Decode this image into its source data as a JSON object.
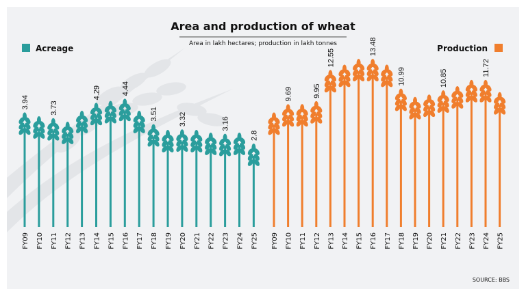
{
  "chart_data": {
    "type": "bar",
    "title": "Area and production of wheat",
    "subtitle": "Area in lakh hectares; production in lakh tonnes",
    "source": "SOURCE: BBS",
    "categories": [
      "FY09",
      "FY10",
      "FY11",
      "FY12",
      "FY13",
      "FY14",
      "FY15",
      "FY16",
      "FY17",
      "FY18",
      "FY19",
      "FY20",
      "FY21",
      "FY22",
      "FY23",
      "FY24",
      "FY25"
    ],
    "series": [
      {
        "name": "Acreage",
        "color": "#2a9d9c",
        "values": [
          3.94,
          3.8,
          3.73,
          3.6,
          4.0,
          4.29,
          4.36,
          4.44,
          4.0,
          3.51,
          3.3,
          3.32,
          3.3,
          3.2,
          3.16,
          3.2,
          2.8
        ],
        "labels": [
          "3.94",
          "",
          "3.73",
          "",
          "",
          "4.29",
          "",
          "4.44",
          "",
          "3.51",
          "",
          "3.32",
          "",
          "",
          "3.16",
          "",
          "2.8"
        ],
        "ylim": [
          0,
          7
        ]
      },
      {
        "name": "Production",
        "color": "#f07e2d",
        "values": [
          9.0,
          9.69,
          9.7,
          9.95,
          12.55,
          13.0,
          13.48,
          13.48,
          13.0,
          10.99,
          10.3,
          10.5,
          10.85,
          11.2,
          11.72,
          11.72,
          10.7
        ],
        "labels": [
          "",
          "9.69",
          "",
          "9.95",
          "12.55",
          "",
          "",
          "13.48",
          "",
          "10.99",
          "",
          "",
          "10.85",
          "",
          "",
          "11.72",
          ""
        ],
        "ylim": [
          0,
          16
        ]
      }
    ]
  }
}
